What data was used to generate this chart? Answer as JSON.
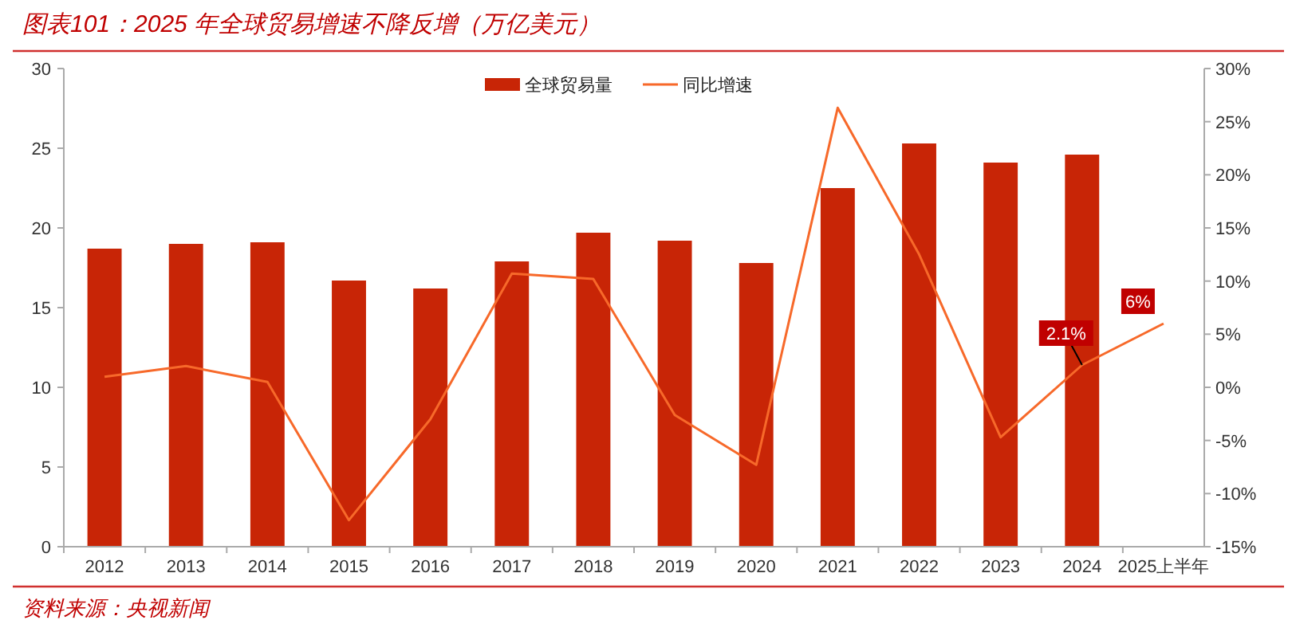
{
  "chart_data": {
    "type": "bar",
    "title": "图表101：2025 年全球贸易增速不降反增（万亿美元）",
    "annotations": [
      "资料来源：央视新闻"
    ],
    "categories": [
      "2012",
      "2013",
      "2014",
      "2015",
      "2016",
      "2017",
      "2018",
      "2019",
      "2020",
      "2021",
      "2022",
      "2023",
      "2024",
      "2025上半年"
    ],
    "series": [
      {
        "name": "全球贸易量",
        "color": "#c82506",
        "values": [
          18.7,
          19.0,
          19.1,
          16.7,
          16.2,
          17.9,
          19.7,
          19.2,
          17.8,
          22.5,
          25.3,
          24.1,
          24.6,
          null
        ]
      },
      {
        "name": "同比增速",
        "type": "line",
        "axis": "y2",
        "color": "#f7692a",
        "values": [
          1.0,
          2.0,
          0.5,
          -12.5,
          -3.0,
          10.7,
          10.2,
          -2.6,
          -7.3,
          26.3,
          12.5,
          -4.7,
          2.1,
          6
        ],
        "value_labels": [
          null,
          null,
          null,
          null,
          null,
          null,
          null,
          null,
          null,
          null,
          null,
          null,
          "2.1%",
          "6%"
        ]
      }
    ],
    "ylim": [
      0,
      30
    ],
    "yticks": [
      0,
      5,
      10,
      15,
      20,
      25,
      30
    ],
    "y2lim": [
      -15,
      30
    ],
    "y2ticks": [
      {
        "value": -15,
        "label": "-15%"
      },
      {
        "value": -10,
        "label": "-10%"
      },
      {
        "value": -5,
        "label": "-5%"
      },
      {
        "value": 0,
        "label": "0%"
      },
      {
        "value": 5,
        "label": "5%"
      },
      {
        "value": 10,
        "label": "10%"
      },
      {
        "value": 15,
        "label": "15%"
      },
      {
        "value": 20,
        "label": "20%"
      },
      {
        "value": 25,
        "label": "25%"
      },
      {
        "value": 30,
        "label": "30%"
      }
    ],
    "legend": "top",
    "grid": false
  }
}
